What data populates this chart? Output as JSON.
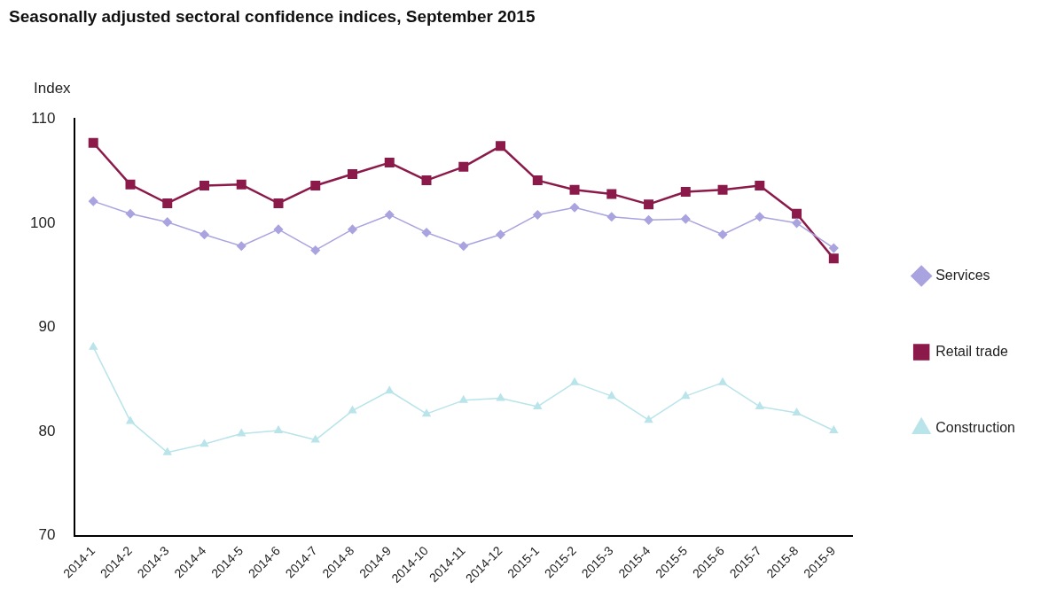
{
  "chart_data": {
    "type": "line",
    "title": "Seasonally adjusted sectoral confidence indices, September 2015",
    "ylabel": "Index",
    "categories": [
      "2014-1",
      "2014-2",
      "2014-3",
      "2014-4",
      "2014-5",
      "2014-6",
      "2014-7",
      "2014-8",
      "2014-9",
      "2014-10",
      "2014-11",
      "2014-12",
      "2015-1",
      "2015-2",
      "2015-3",
      "2015-4",
      "2015-5",
      "2015-6",
      "2015-7",
      "2015-8",
      "2015-9"
    ],
    "series": [
      {
        "name": "Services",
        "color": "#a9a3e0",
        "marker": "diamond",
        "values": [
          102.1,
          100.9,
          100.1,
          98.9,
          97.8,
          99.4,
          97.4,
          99.4,
          100.8,
          99.1,
          97.8,
          98.9,
          100.8,
          101.5,
          100.6,
          100.3,
          100.4,
          98.9,
          100.6,
          100.0,
          97.6
        ]
      },
      {
        "name": "Retail trade",
        "color": "#8b1a4a",
        "marker": "square",
        "values": [
          107.7,
          103.7,
          101.9,
          103.6,
          103.7,
          101.9,
          103.6,
          104.7,
          105.8,
          104.1,
          105.4,
          107.4,
          104.1,
          103.2,
          102.8,
          101.8,
          103.0,
          103.2,
          103.6,
          100.9,
          96.6
        ]
      },
      {
        "name": "Construction",
        "color": "#b8e4ea",
        "marker": "triangle",
        "values": [
          88.1,
          81.0,
          78.0,
          78.8,
          79.8,
          80.1,
          79.2,
          82.0,
          83.9,
          81.7,
          83.0,
          83.2,
          82.4,
          84.7,
          83.4,
          81.1,
          83.4,
          84.7,
          82.4,
          81.8,
          80.1
        ]
      }
    ],
    "ylim": [
      70,
      110
    ],
    "yticks": [
      70,
      80,
      90,
      100,
      110
    ],
    "grid": false,
    "legend": "right",
    "line_style": "solid"
  }
}
